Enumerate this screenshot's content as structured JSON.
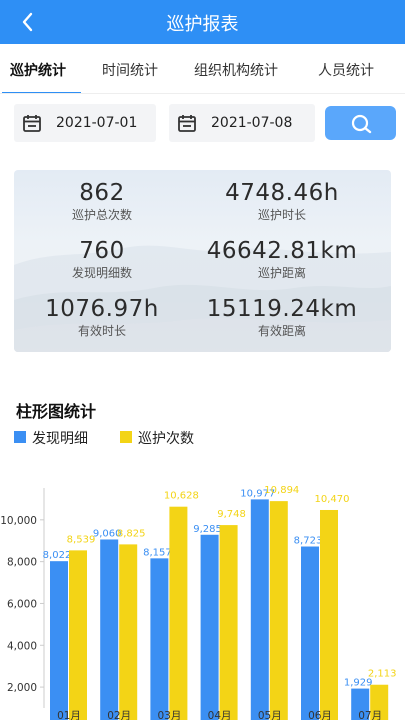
{
  "header": {
    "title": "巡护报表",
    "back_icon": "chevron-left-icon"
  },
  "tabs": [
    {
      "label": "巡护统计",
      "active": true
    },
    {
      "label": "时间统计",
      "active": false
    },
    {
      "label": "组织机构统计",
      "active": false
    },
    {
      "label": "人员统计",
      "active": false
    }
  ],
  "filters": {
    "start_date": "2021-07-01",
    "end_date": "2021-07-08",
    "date_icon": "calendar-icon",
    "search_icon": "search-icon"
  },
  "stats": [
    {
      "value": "862",
      "label": "巡护总次数"
    },
    {
      "value": "4748.46h",
      "label": "巡护时长"
    },
    {
      "value": "760",
      "label": "发现明细数"
    },
    {
      "value": "46642.81km",
      "label": "巡护距离"
    },
    {
      "value": "1076.97h",
      "label": "有效时长"
    },
    {
      "value": "15119.24km",
      "label": "有效距离"
    }
  ],
  "chart_section": {
    "title": "柱形图统计"
  },
  "colors": {
    "primary": "#2e8ff5",
    "series_blue": "#3b8ff3",
    "series_yellow": "#f3d416"
  },
  "chart_data": {
    "type": "bar",
    "categories": [
      "01月",
      "02月",
      "03月",
      "04月",
      "05月",
      "06月",
      "07月"
    ],
    "series": [
      {
        "name": "发现明细",
        "color": "#3b8ff3",
        "values": [
          8022,
          9060,
          8157,
          9285,
          10977,
          8723,
          1929
        ]
      },
      {
        "name": "巡护次数",
        "color": "#f3d416",
        "values": [
          8539,
          8825,
          10628,
          9748,
          10894,
          10470,
          2113
        ]
      }
    ],
    "y_ticks": [
      "2,000",
      "4,000",
      "6,000",
      "8,000",
      "10,000"
    ],
    "ylim": [
      1000,
      12000
    ],
    "legend_position": "top-left",
    "data_labels": true
  }
}
